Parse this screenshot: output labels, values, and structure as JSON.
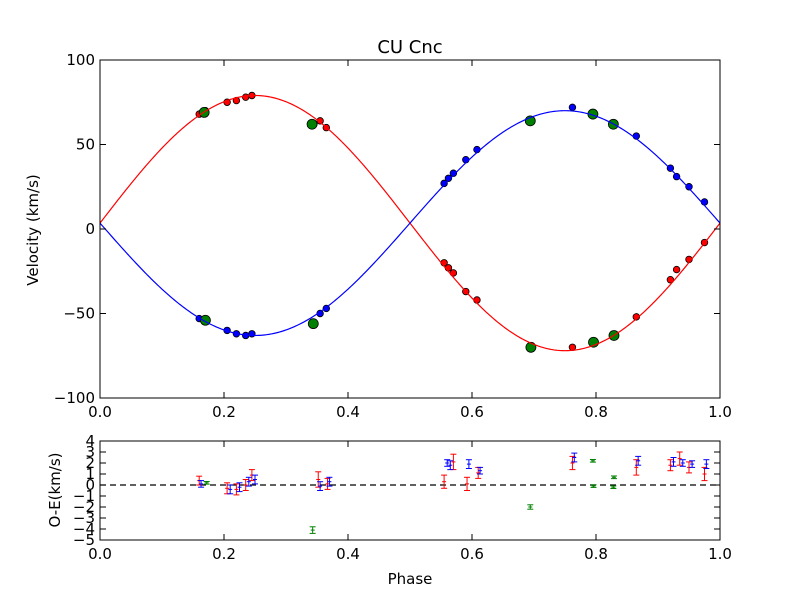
{
  "chart_data": [
    {
      "type": "scatter",
      "title": "CU Cnc",
      "xlabel": "",
      "ylabel": "Velocity (km/s)",
      "xlim": [
        0.0,
        1.0
      ],
      "ylim": [
        -100,
        100
      ],
      "xticks": [
        "0.0",
        "0.2",
        "0.4",
        "0.6",
        "0.8",
        "1.0"
      ],
      "yticks": [
        "100",
        "50",
        "0",
        "−50",
        "−100"
      ],
      "grid": false,
      "legend": "none",
      "series": [
        {
          "color": "#ff0000",
          "mark": "small-circle",
          "x": [
            0.16,
            0.17,
            0.205,
            0.22,
            0.235,
            0.245,
            0.345,
            0.355,
            0.365,
            0.555,
            0.562,
            0.57,
            0.59,
            0.608,
            0.762,
            0.795,
            0.865,
            0.92,
            0.93,
            0.95,
            0.975
          ],
          "y": [
            68,
            70,
            75,
            76,
            78,
            79,
            62,
            64,
            60,
            -20,
            -23,
            -26,
            -37,
            -42,
            -70,
            -67,
            -52,
            -30,
            -24,
            -18,
            -8
          ]
        },
        {
          "color": "#0000ff",
          "mark": "small-circle",
          "x": [
            0.16,
            0.17,
            0.205,
            0.22,
            0.235,
            0.245,
            0.355,
            0.365,
            0.555,
            0.562,
            0.57,
            0.59,
            0.608,
            0.762,
            0.795,
            0.865,
            0.92,
            0.93,
            0.95,
            0.975
          ],
          "y": [
            -53,
            -54,
            -60,
            -62,
            -63,
            -62,
            -50,
            -47,
            27,
            30,
            33,
            41,
            47,
            72,
            67,
            55,
            36,
            31,
            25,
            16
          ]
        },
        {
          "color": "#008000",
          "mark": "large-circle",
          "x": [
            0.168,
            0.17,
            0.342,
            0.344,
            0.694,
            0.695,
            0.795,
            0.796,
            0.828,
            0.829
          ],
          "y": [
            69,
            -54,
            62,
            -56,
            64,
            -70,
            68,
            -67,
            62,
            -63
          ]
        },
        {
          "color": "#ff0000",
          "mark": "model-curve",
          "gamma": 3.5,
          "semi_amplitude": 75.5,
          "phase_of_maximum": 0.25
        },
        {
          "color": "#0000ff",
          "mark": "model-curve",
          "gamma": 3.5,
          "semi_amplitude": 66.5,
          "phase_of_maximum": 0.75
        }
      ]
    },
    {
      "type": "scatter",
      "title": "",
      "xlabel": "Phase",
      "ylabel": "O-E(km/s)",
      "xlim": [
        0.0,
        1.0
      ],
      "ylim": [
        -5,
        4
      ],
      "xticks": [
        "0.0",
        "0.2",
        "0.4",
        "0.6",
        "0.8",
        "1.0"
      ],
      "yticks": [
        "4",
        "3",
        "2",
        "1",
        "0",
        "−1",
        "−2",
        "−3",
        "−4",
        "−5"
      ],
      "zero_line": "dashed",
      "series": [
        {
          "color": "#ff0000",
          "mark": "error-bar",
          "x": [
            0.16,
            0.205,
            0.22,
            0.235,
            0.245,
            0.352,
            0.367,
            0.555,
            0.57,
            0.592,
            0.61,
            0.762,
            0.865,
            0.92,
            0.935,
            0.95,
            0.975
          ],
          "y": [
            0.4,
            -0.3,
            -0.4,
            0.0,
            0.9,
            0.5,
            0.1,
            0.3,
            2.1,
            0.1,
            1.1,
            2.0,
            1.6,
            1.8,
            2.4,
            1.6,
            1.0
          ],
          "err": [
            0.4,
            0.5,
            0.5,
            0.5,
            0.5,
            0.7,
            0.5,
            0.6,
            0.7,
            0.6,
            0.5,
            0.6,
            0.7,
            0.5,
            0.6,
            0.5,
            0.6
          ]
        },
        {
          "color": "#0000ff",
          "mark": "error-bar",
          "x": [
            0.163,
            0.21,
            0.225,
            0.24,
            0.25,
            0.355,
            0.37,
            0.56,
            0.565,
            0.595,
            0.613,
            0.765,
            0.868,
            0.925,
            0.94,
            0.955,
            0.978
          ],
          "y": [
            0.1,
            -0.4,
            -0.2,
            0.3,
            0.5,
            -0.1,
            0.3,
            2.0,
            1.8,
            1.9,
            1.3,
            2.5,
            2.2,
            2.1,
            2.0,
            1.9,
            1.9
          ],
          "err": [
            0.3,
            0.4,
            0.4,
            0.4,
            0.4,
            0.4,
            0.4,
            0.3,
            0.4,
            0.4,
            0.3,
            0.4,
            0.4,
            0.4,
            0.3,
            0.3,
            0.4
          ]
        },
        {
          "color": "#008000",
          "mark": "error-bar",
          "x": [
            0.172,
            0.343,
            0.694,
            0.795,
            0.796,
            0.828,
            0.829
          ],
          "y": [
            0.2,
            -4.1,
            -2.0,
            2.2,
            -0.1,
            -0.2,
            0.7
          ],
          "err": [
            0.12,
            0.3,
            0.2,
            0.12,
            0.12,
            0.12,
            0.12
          ]
        }
      ]
    }
  ]
}
